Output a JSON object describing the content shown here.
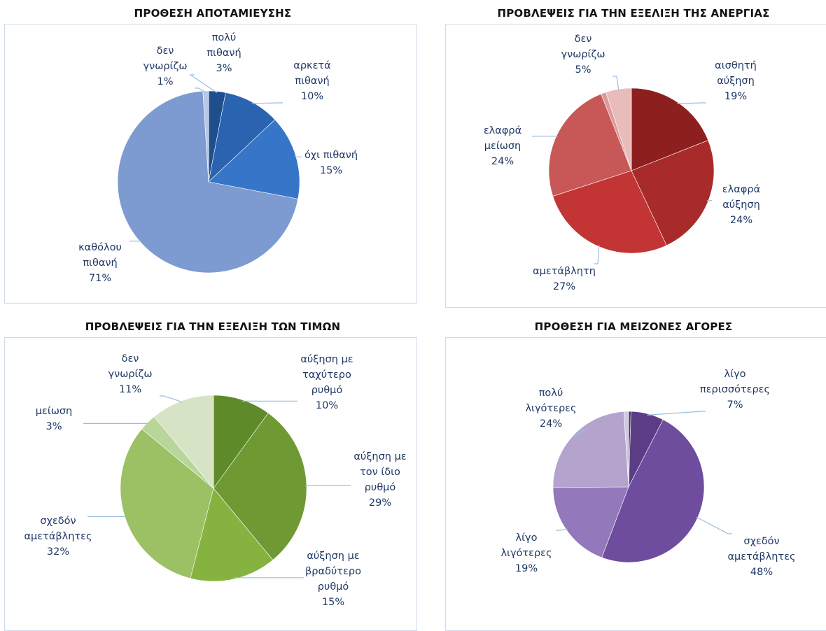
{
  "chart_data": [
    {
      "type": "pie",
      "title": "ΠΡΟΘΕΣΗ ΑΠΟΤΑΜΙΕΥΣΗΣ",
      "slices": [
        {
          "label": [
            "πολύ",
            "πιθανή"
          ],
          "value": 3,
          "pct": "3%",
          "color": "#1f4e8c"
        },
        {
          "label": [
            "αρκετά",
            "πιθανή"
          ],
          "value": 10,
          "pct": "10%",
          "color": "#2a63b0"
        },
        {
          "label": [
            "όχι πιθανή"
          ],
          "value": 15,
          "pct": "15%",
          "color": "#3675c8"
        },
        {
          "label": [
            "καθόλου",
            "πιθανή"
          ],
          "value": 71,
          "pct": "71%",
          "color": "#7d9bd0"
        },
        {
          "label": [
            "δεν",
            "γνωρίζω"
          ],
          "value": 1,
          "pct": "1%",
          "color": "#b6c8e6"
        }
      ]
    },
    {
      "type": "pie",
      "title": "ΠΡΟΒΛΕΨΕΙΣ ΓΙΑ ΤΗΝ ΕΞΕΛΙΞΗ ΤΗΣ ΑΝΕΡΓΙΑΣ",
      "slices": [
        {
          "label": [
            "αισθητή",
            "αύξηση"
          ],
          "value": 19,
          "pct": "19%",
          "color": "#8e1f1f"
        },
        {
          "label": [
            "ελαφρά",
            "αύξηση"
          ],
          "value": 24,
          "pct": "24%",
          "color": "#a82a2a"
        },
        {
          "label": [
            "αμετάβλητη"
          ],
          "value": 27,
          "pct": "27%",
          "color": "#c33434"
        },
        {
          "label": [
            "ελαφρά",
            "μείωση"
          ],
          "value": 24,
          "pct": "24%",
          "color": "#c85858"
        },
        {
          "label": [],
          "value": 1,
          "pct": "",
          "color": "#dd9a9a"
        },
        {
          "label": [
            "δεν",
            "γνωρίζω"
          ],
          "value": 5,
          "pct": "5%",
          "color": "#e9bcbc"
        }
      ]
    },
    {
      "type": "pie",
      "title": "ΠΡΟΒΛΕΨΕΙΣ ΓΙΑ ΤΗΝ ΕΞΕΛΙΞΗ ΤΩΝ ΤΙΜΩΝ",
      "slices": [
        {
          "label": [
            "αύξηση με",
            "ταχύτερο",
            "ρυθμό"
          ],
          "value": 10,
          "pct": "10%",
          "color": "#5e8a2a"
        },
        {
          "label": [
            "αύξηση με",
            "τον ίδιο",
            "ρυθμό"
          ],
          "value": 29,
          "pct": "29%",
          "color": "#6f9a33"
        },
        {
          "label": [
            "αύξηση με",
            "βραδύτερο",
            "ρυθμό"
          ],
          "value": 15,
          "pct": "15%",
          "color": "#86b33f"
        },
        {
          "label": [
            "σχεδόν",
            "αμετάβλητες"
          ],
          "value": 32,
          "pct": "32%",
          "color": "#9cc064"
        },
        {
          "label": [
            "μείωση"
          ],
          "value": 3,
          "pct": "3%",
          "color": "#b8d59a"
        },
        {
          "label": [
            "δεν",
            "γνωρίζω"
          ],
          "value": 11,
          "pct": "11%",
          "color": "#d6e4c5"
        }
      ]
    },
    {
      "type": "pie",
      "title": "ΠΡΟΘΕΣΗ ΓΙΑ ΜΕΙΖΟΝΕΣ ΑΓΟΡΕΣ",
      "slices": [
        {
          "label": [],
          "value": 0.5,
          "pct": "",
          "color": "#4a2f6e"
        },
        {
          "label": [
            "λίγο",
            "περισσότερες"
          ],
          "value": 7,
          "pct": "7%",
          "color": "#5b3d85"
        },
        {
          "label": [
            "σχεδόν",
            "αμετάβλητες"
          ],
          "value": 48,
          "pct": "48%",
          "color": "#6e4c9e"
        },
        {
          "label": [
            "λίγο",
            "λιγότερες"
          ],
          "value": 19,
          "pct": "19%",
          "color": "#9378bb"
        },
        {
          "label": [
            "πολύ",
            "λιγότερες"
          ],
          "value": 24,
          "pct": "24%",
          "color": "#b3a3cd"
        },
        {
          "label": [],
          "value": 1,
          "pct": "",
          "color": "#d2c9e2"
        }
      ]
    }
  ]
}
